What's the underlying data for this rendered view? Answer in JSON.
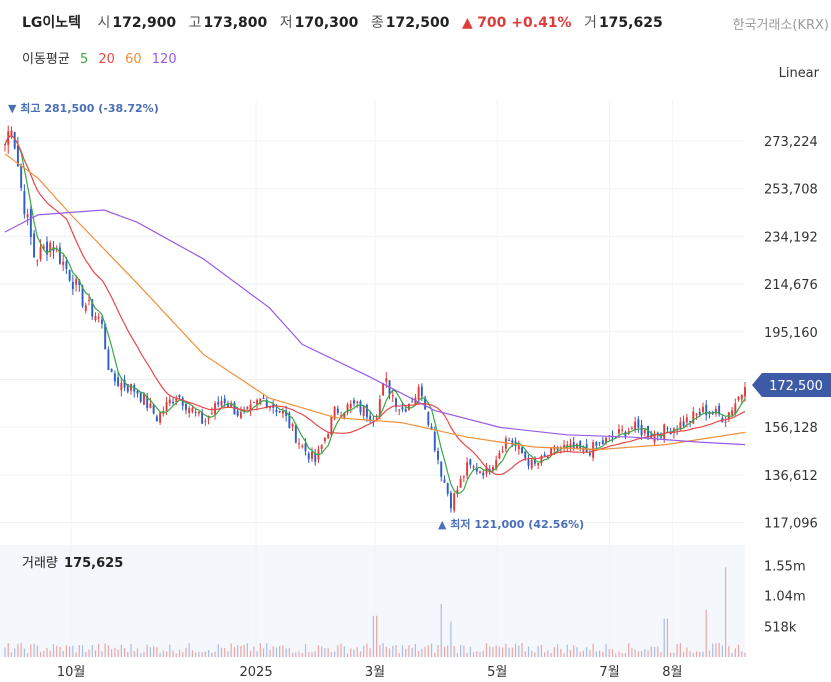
{
  "header": {
    "ticker": "LG이노텍",
    "open_label": "시",
    "open": "172,900",
    "high_label": "고",
    "high": "173,800",
    "low_label": "저",
    "low": "170,300",
    "close_label": "종",
    "close": "172,500",
    "change_arrow": "▲",
    "change": "700 +0.41%",
    "volume_label": "거",
    "volume": "175,625",
    "exchange": "한국거래소(KRX)"
  },
  "ma_legend": {
    "title": "이동평균",
    "items": [
      {
        "label": "5",
        "color": "#3aa845"
      },
      {
        "label": "20",
        "color": "#e94848"
      },
      {
        "label": "60",
        "color": "#f0903a"
      },
      {
        "label": "120",
        "color": "#9a5be8"
      }
    ]
  },
  "scale_mode": "Linear",
  "price_tag": "172,500",
  "annotations": {
    "high": "▼ 최고 281,500 (-38.72%)",
    "low": "▲ 최저 121,000 (42.56%)"
  },
  "volume_panel": {
    "title": "거래량",
    "value": "175,625"
  },
  "colors": {
    "up": "#e03b3b",
    "down": "#2f5ec4",
    "tag": "#3c5aa6"
  },
  "chart_data": {
    "type": "candlestick",
    "y_axis_ticks": [
      "273,224",
      "253,708",
      "234,192",
      "214,676",
      "195,160",
      "175,644",
      "156,128",
      "136,612",
      "117,096"
    ],
    "y_tick_values": [
      273224,
      253708,
      234192,
      214676,
      195160,
      175644,
      156128,
      136612,
      117096
    ],
    "ylim": [
      112000,
      290000
    ],
    "x_axis_ticks": [
      "10월",
      "2025",
      "3월",
      "5월",
      "7월",
      "8월"
    ],
    "x_tick_positions": [
      0.1,
      0.38,
      0.56,
      0.745,
      0.915,
      1.01
    ],
    "close_path": [
      {
        "t": 0.0,
        "v": 272000
      },
      {
        "t": 0.01,
        "v": 281500
      },
      {
        "t": 0.025,
        "v": 253000
      },
      {
        "t": 0.045,
        "v": 225000
      },
      {
        "t": 0.07,
        "v": 232000
      },
      {
        "t": 0.095,
        "v": 220000
      },
      {
        "t": 0.12,
        "v": 207000
      },
      {
        "t": 0.145,
        "v": 200000
      },
      {
        "t": 0.16,
        "v": 176000
      },
      {
        "t": 0.2,
        "v": 171000
      },
      {
        "t": 0.23,
        "v": 160000
      },
      {
        "t": 0.26,
        "v": 170000
      },
      {
        "t": 0.3,
        "v": 158000
      },
      {
        "t": 0.33,
        "v": 168000
      },
      {
        "t": 0.36,
        "v": 160000
      },
      {
        "t": 0.39,
        "v": 168000
      },
      {
        "t": 0.42,
        "v": 162000
      },
      {
        "t": 0.45,
        "v": 148000
      },
      {
        "t": 0.47,
        "v": 142000
      },
      {
        "t": 0.5,
        "v": 163000
      },
      {
        "t": 0.53,
        "v": 165000
      },
      {
        "t": 0.56,
        "v": 160000
      },
      {
        "t": 0.575,
        "v": 175000
      },
      {
        "t": 0.6,
        "v": 163000
      },
      {
        "t": 0.63,
        "v": 172000
      },
      {
        "t": 0.66,
        "v": 138000
      },
      {
        "t": 0.675,
        "v": 125000
      },
      {
        "t": 0.7,
        "v": 140000
      },
      {
        "t": 0.73,
        "v": 138000
      },
      {
        "t": 0.76,
        "v": 152000
      },
      {
        "t": 0.8,
        "v": 140000
      },
      {
        "t": 0.84,
        "v": 148000
      },
      {
        "t": 0.88,
        "v": 146000
      },
      {
        "t": 0.92,
        "v": 152000
      },
      {
        "t": 0.95,
        "v": 156000
      },
      {
        "t": 0.98,
        "v": 153000
      },
      {
        "t": 1.02,
        "v": 157000
      },
      {
        "t": 1.06,
        "v": 163000
      },
      {
        "t": 1.09,
        "v": 160000
      },
      {
        "t": 1.12,
        "v": 172500
      }
    ],
    "ma_paths": {
      "ma60": [
        [
          0.0,
          268000
        ],
        [
          0.05,
          258000
        ],
        [
          0.1,
          243000
        ],
        [
          0.2,
          215000
        ],
        [
          0.3,
          186000
        ],
        [
          0.4,
          168000
        ],
        [
          0.5,
          160000
        ],
        [
          0.6,
          158000
        ],
        [
          0.7,
          152000
        ],
        [
          0.8,
          148000
        ],
        [
          0.9,
          147000
        ],
        [
          1.0,
          149000
        ],
        [
          1.12,
          154000
        ]
      ],
      "ma120": [
        [
          0.0,
          236000
        ],
        [
          0.05,
          243000
        ],
        [
          0.1,
          244000
        ],
        [
          0.15,
          245000
        ],
        [
          0.2,
          240000
        ],
        [
          0.3,
          225000
        ],
        [
          0.4,
          205000
        ],
        [
          0.45,
          190000
        ],
        [
          0.55,
          177000
        ],
        [
          0.65,
          163000
        ],
        [
          0.75,
          156000
        ],
        [
          0.85,
          153000
        ],
        [
          0.95,
          152000
        ],
        [
          1.05,
          150000
        ],
        [
          1.12,
          149000
        ]
      ]
    },
    "volume_ticks": [
      "1.55m",
      "1.04m",
      "518k"
    ],
    "volume_tick_values": [
      1550000,
      1040000,
      518000
    ],
    "volume_max": 1900000,
    "volume_spikes": [
      [
        0.56,
        700000
      ],
      [
        0.66,
        900000
      ],
      [
        0.675,
        600000
      ],
      [
        1.0,
        650000
      ],
      [
        1.06,
        800000
      ],
      [
        1.09,
        1520000
      ]
    ]
  }
}
